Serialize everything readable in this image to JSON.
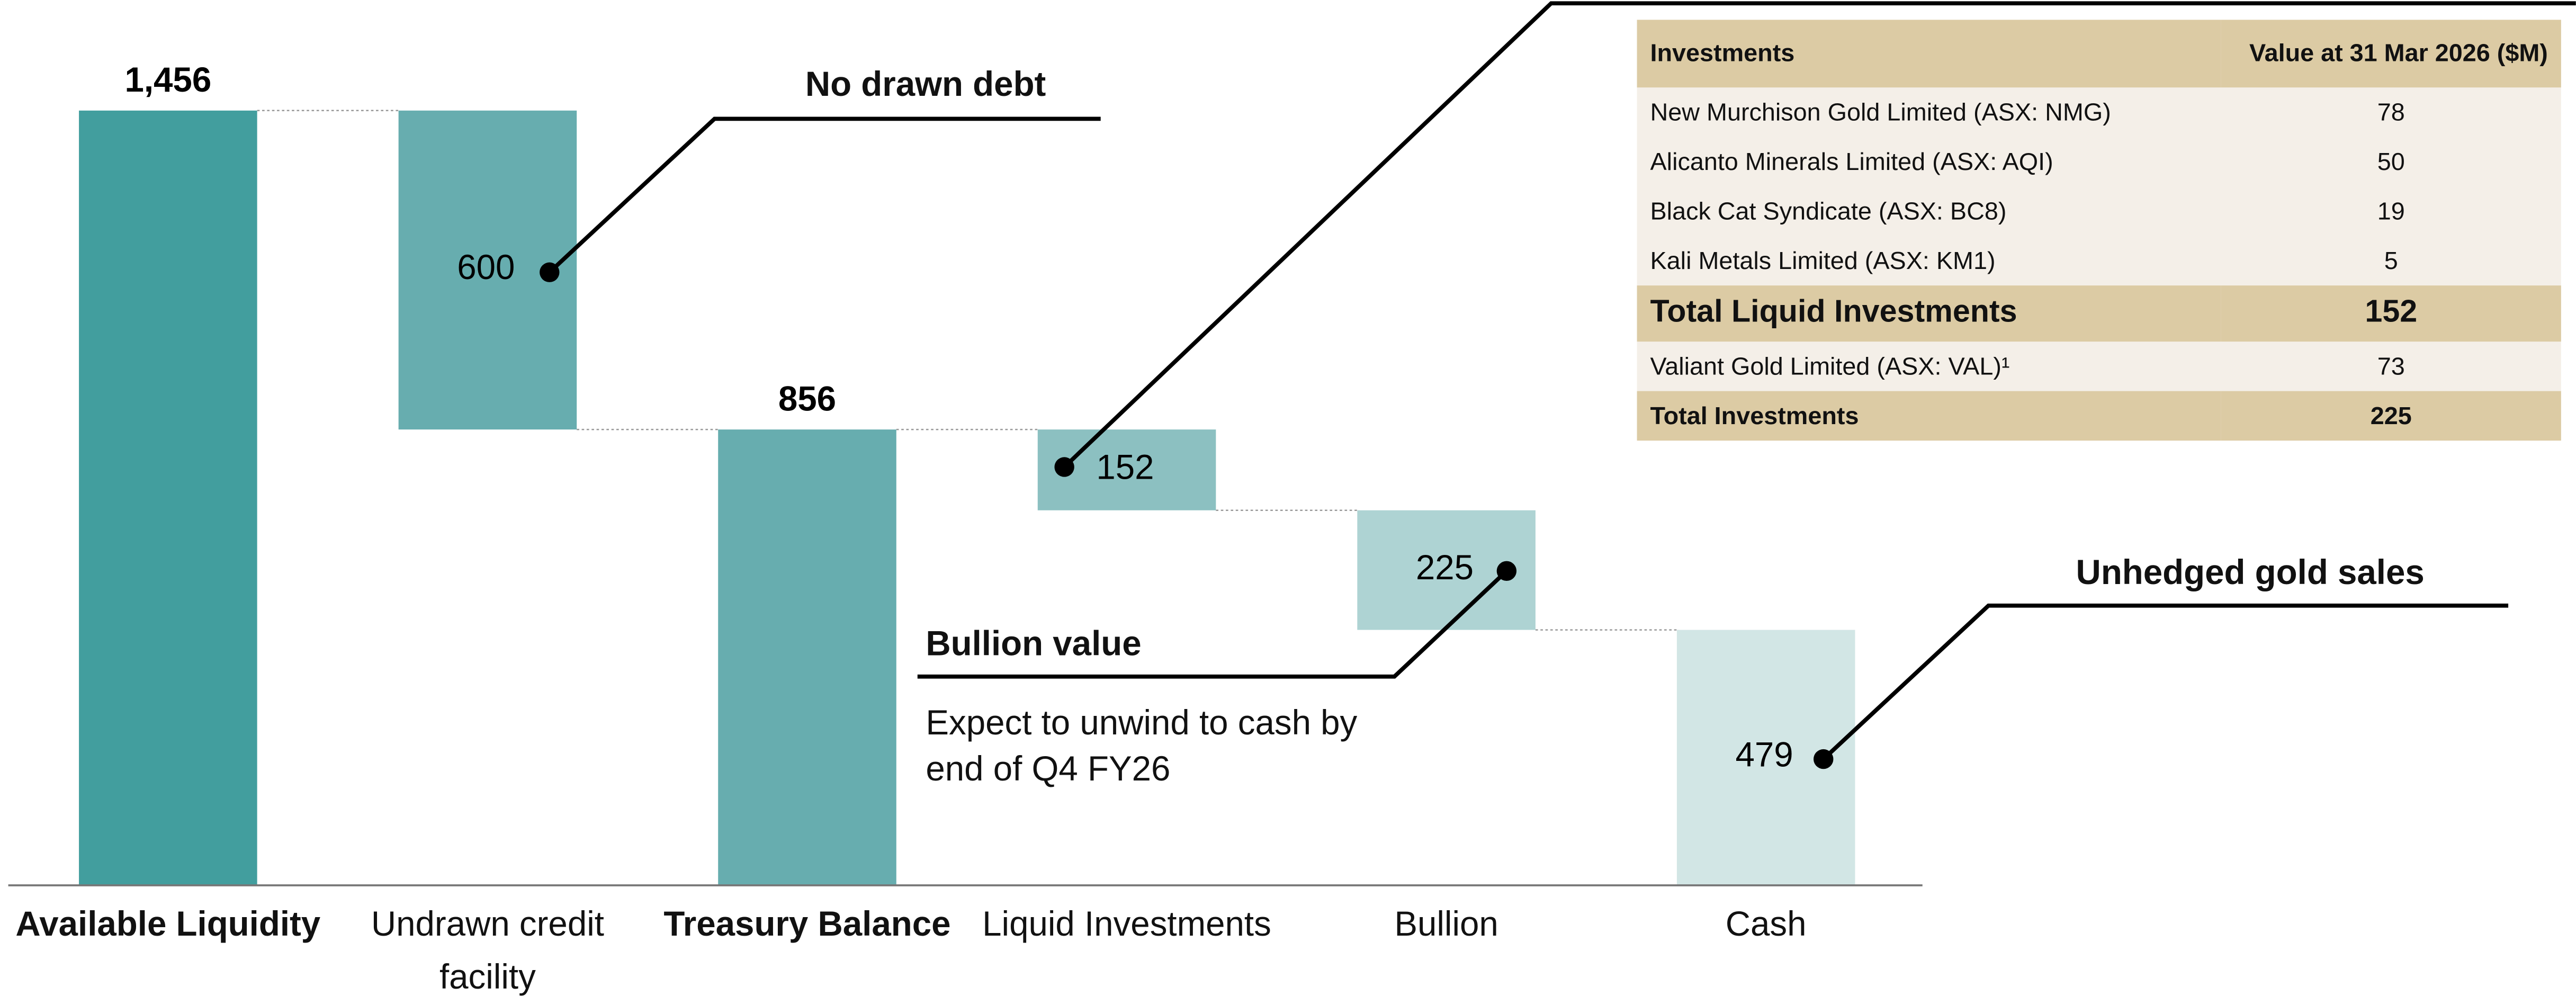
{
  "chart_data": {
    "type": "waterfall",
    "categories": [
      "Available Liquidity",
      "Undrawn credit facility",
      "Treasury Balance",
      "Liquid Investments",
      "Bullion",
      "Cash"
    ],
    "values": [
      1456,
      600,
      856,
      152,
      225,
      479
    ],
    "value_labels": [
      "1,456",
      "600",
      "856",
      "152",
      "225",
      "479"
    ],
    "colors": [
      "#429e9e",
      "#67adaf",
      "#67adaf",
      "#8cc0c1",
      "#aed3d3",
      "#d2e6e5"
    ],
    "bold": [
      true,
      false,
      true,
      false,
      false,
      false
    ],
    "annotations": [
      "No drawn debt",
      "Bullion value",
      "Expect to unwind to cash by end of Q4 FY26",
      "Unhedged gold sales"
    ]
  },
  "table": {
    "header": [
      "Investments",
      "Value at 31 Mar 2026 ($M)"
    ],
    "rows": [
      [
        "New Murchison Gold Limited (ASX: NMG)",
        "78"
      ],
      [
        "Alicanto Minerals Limited (ASX: AQI)",
        "50"
      ],
      [
        "Black Cat Syndicate (ASX: BC8)",
        "19"
      ],
      [
        "Kali Metals Limited (ASX: KM1)",
        "5"
      ],
      [
        "Total Liquid Investments",
        "152"
      ],
      [
        "Valiant Gold Limited (ASX: VAL)¹",
        "73"
      ],
      [
        "Total Investments",
        "225"
      ]
    ]
  }
}
